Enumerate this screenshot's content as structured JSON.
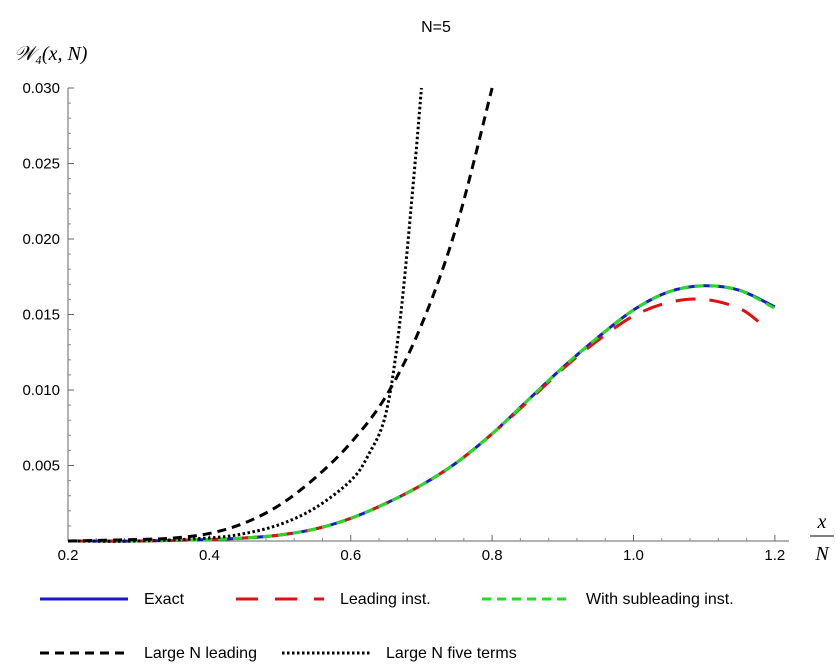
{
  "chart_data": {
    "type": "line",
    "title": "N=5",
    "ylabel": "𝒲₄(x, N)",
    "xlabel_num": "x",
    "xlabel_den": "N",
    "xlim": [
      0.2,
      1.22
    ],
    "ylim": [
      0,
      0.03
    ],
    "x_ticks": [
      0.2,
      0.4,
      0.6,
      0.8,
      1.0,
      1.2
    ],
    "x_tick_labels": [
      "0.2",
      "0.4",
      "0.6",
      "0.8",
      "1.0",
      "1.2"
    ],
    "y_ticks": [
      0.005,
      0.01,
      0.015,
      0.02,
      0.025,
      0.03
    ],
    "y_tick_labels": [
      "0.005",
      "0.010",
      "0.015",
      "0.020",
      "0.025",
      "0.030"
    ],
    "grid": false,
    "legend_position": "bottom",
    "series": [
      {
        "name": "Exact",
        "color": "#1a1acc",
        "dash": "solid",
        "x": [
          0.2,
          0.3,
          0.4,
          0.45,
          0.5,
          0.55,
          0.6,
          0.65,
          0.7,
          0.75,
          0.8,
          0.85,
          0.9,
          0.95,
          1.0,
          1.05,
          1.1,
          1.15,
          1.2
        ],
        "y": [
          0.0,
          0.0,
          0.0001,
          0.0002,
          0.0004,
          0.0008,
          0.0015,
          0.0025,
          0.0037,
          0.0052,
          0.0071,
          0.0093,
          0.0115,
          0.0135,
          0.0153,
          0.0165,
          0.0169,
          0.0166,
          0.0155
        ]
      },
      {
        "name": "Leading inst.",
        "color": "#e01010",
        "dash": "long-dash",
        "x": [
          0.2,
          0.3,
          0.4,
          0.45,
          0.5,
          0.55,
          0.6,
          0.65,
          0.7,
          0.75,
          0.8,
          0.85,
          0.9,
          0.95,
          1.0,
          1.05,
          1.1,
          1.15,
          1.18
        ],
        "y": [
          0.0,
          0.0,
          0.0001,
          0.0002,
          0.0004,
          0.0008,
          0.0015,
          0.0025,
          0.0037,
          0.0052,
          0.0071,
          0.0092,
          0.0114,
          0.0133,
          0.0149,
          0.0158,
          0.016,
          0.0154,
          0.0144
        ]
      },
      {
        "name": "With subleading inst.",
        "color": "#22dd22",
        "dash": "dash",
        "x": [
          0.2,
          0.3,
          0.4,
          0.45,
          0.5,
          0.55,
          0.6,
          0.65,
          0.7,
          0.75,
          0.8,
          0.85,
          0.9,
          0.95,
          1.0,
          1.05,
          1.1,
          1.15,
          1.2
        ],
        "y": [
          0.0,
          0.0,
          0.0001,
          0.0002,
          0.0004,
          0.0008,
          0.0015,
          0.0025,
          0.0037,
          0.0052,
          0.0071,
          0.0093,
          0.0115,
          0.0135,
          0.0153,
          0.0165,
          0.0169,
          0.0166,
          0.0154
        ]
      },
      {
        "name": "Large N leading",
        "color": "#000000",
        "dash": "dash",
        "x": [
          0.2,
          0.3,
          0.35,
          0.4,
          0.45,
          0.5,
          0.55,
          0.6,
          0.65,
          0.7,
          0.75,
          0.8
        ],
        "y": [
          0.0,
          0.0001,
          0.0002,
          0.0005,
          0.0012,
          0.0024,
          0.0042,
          0.0065,
          0.0096,
          0.0143,
          0.0209,
          0.03
        ]
      },
      {
        "name": "Large N five terms",
        "color": "#000000",
        "dash": "dot",
        "x": [
          0.2,
          0.3,
          0.4,
          0.45,
          0.5,
          0.55,
          0.6,
          0.625,
          0.65,
          0.67,
          0.69,
          0.7
        ],
        "y": [
          0.0,
          0.0,
          0.0002,
          0.0005,
          0.0011,
          0.0022,
          0.004,
          0.0057,
          0.0085,
          0.0147,
          0.0245,
          0.03
        ]
      }
    ]
  }
}
